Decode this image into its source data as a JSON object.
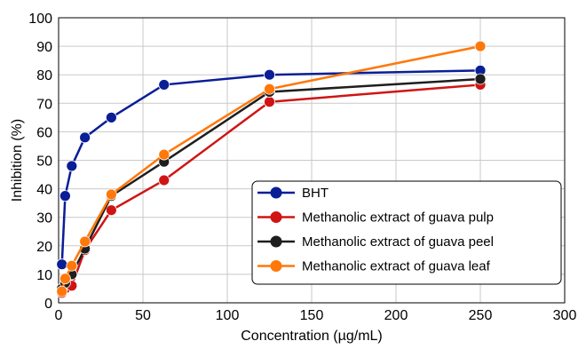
{
  "chart_data": {
    "type": "line",
    "title": "",
    "xlabel": "Concentration (µg/mL)",
    "ylabel": "Inhibition (%)",
    "xlim": [
      0,
      300
    ],
    "ylim": [
      0,
      100
    ],
    "xticks": [
      0,
      50,
      100,
      150,
      200,
      250,
      300
    ],
    "yticks": [
      0,
      10,
      20,
      30,
      40,
      50,
      60,
      70,
      80,
      90,
      100
    ],
    "grid": true,
    "legend_position": "bottom-right",
    "series": [
      {
        "name": "BHT",
        "color": "#0a1e96",
        "x": [
          1.95,
          3.9,
          7.8,
          15.6,
          31.25,
          62.5,
          125,
          250
        ],
        "y": [
          13.5,
          37.5,
          48,
          58,
          65,
          76.5,
          80,
          81.5
        ]
      },
      {
        "name": "Methanolic extract of guava pulp",
        "color": "#d01414",
        "x": [
          1.95,
          3.9,
          7.8,
          15.6,
          31.25,
          62.5,
          125,
          250
        ],
        "y": [
          3.5,
          5,
          6,
          18.5,
          32.5,
          43,
          70.5,
          76.5
        ]
      },
      {
        "name": "Methanolic extract of guava peel",
        "color": "#1e1e1e",
        "x": [
          1.95,
          3.9,
          7.8,
          15.6,
          31.25,
          62.5,
          125,
          250
        ],
        "y": [
          5,
          7,
          10,
          19,
          37.5,
          49.5,
          74,
          78.5
        ]
      },
      {
        "name": "Methanolic extract of guava leaf",
        "color": "#ff780a",
        "x": [
          1.95,
          3.9,
          7.8,
          15.6,
          31.25,
          62.5,
          125,
          250
        ],
        "y": [
          4,
          8.5,
          13,
          21.5,
          38,
          52,
          75,
          90
        ]
      }
    ]
  }
}
